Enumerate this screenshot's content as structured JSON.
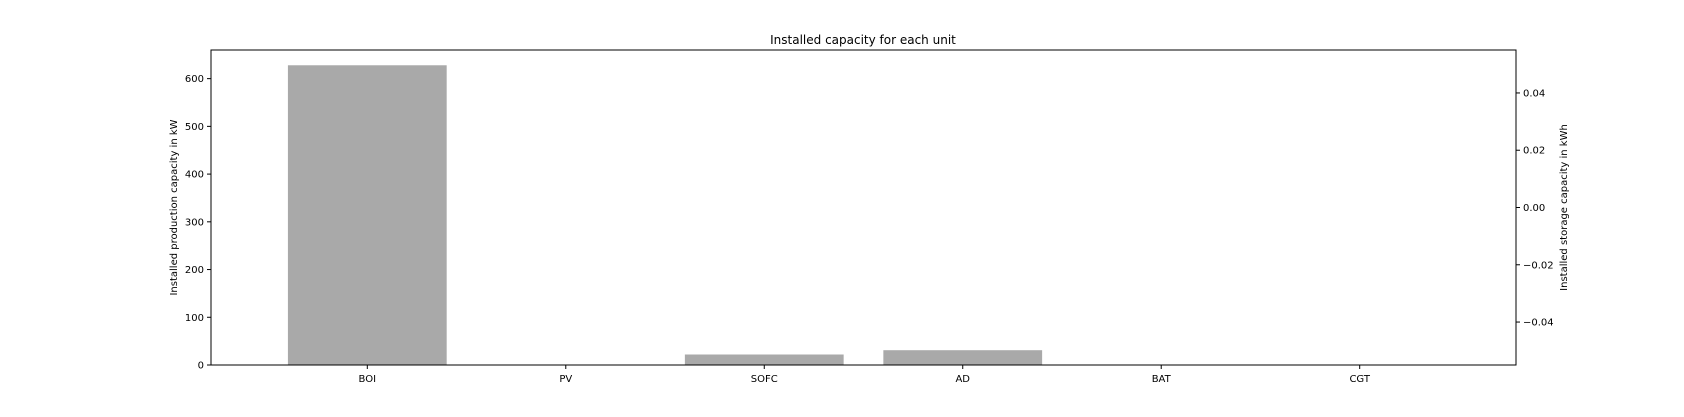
{
  "chart_data": {
    "type": "bar",
    "title": "Installed capacity for each unit",
    "categories": [
      "BOI",
      "PV",
      "SOFC",
      "AD",
      "BAT",
      "CGT"
    ],
    "series": [
      {
        "values": [
          628,
          0,
          22,
          31,
          0,
          0
        ],
        "color": "#a9a9a9"
      }
    ],
    "ylabel": "Installed production capacity in kW",
    "ylim": [
      0,
      660
    ],
    "yticks": [
      0,
      100,
      200,
      300,
      400,
      500,
      600
    ],
    "y2label": "Installed storage capacity in kWh",
    "y2lim": [
      -0.055,
      0.055
    ],
    "y2ticks": [
      -0.04,
      -0.02,
      0.0,
      0.02,
      0.04
    ],
    "y2tick_labels": [
      "−0.04",
      "−0.02",
      "0.00",
      "0.02",
      "0.04"
    ],
    "grid": false
  }
}
